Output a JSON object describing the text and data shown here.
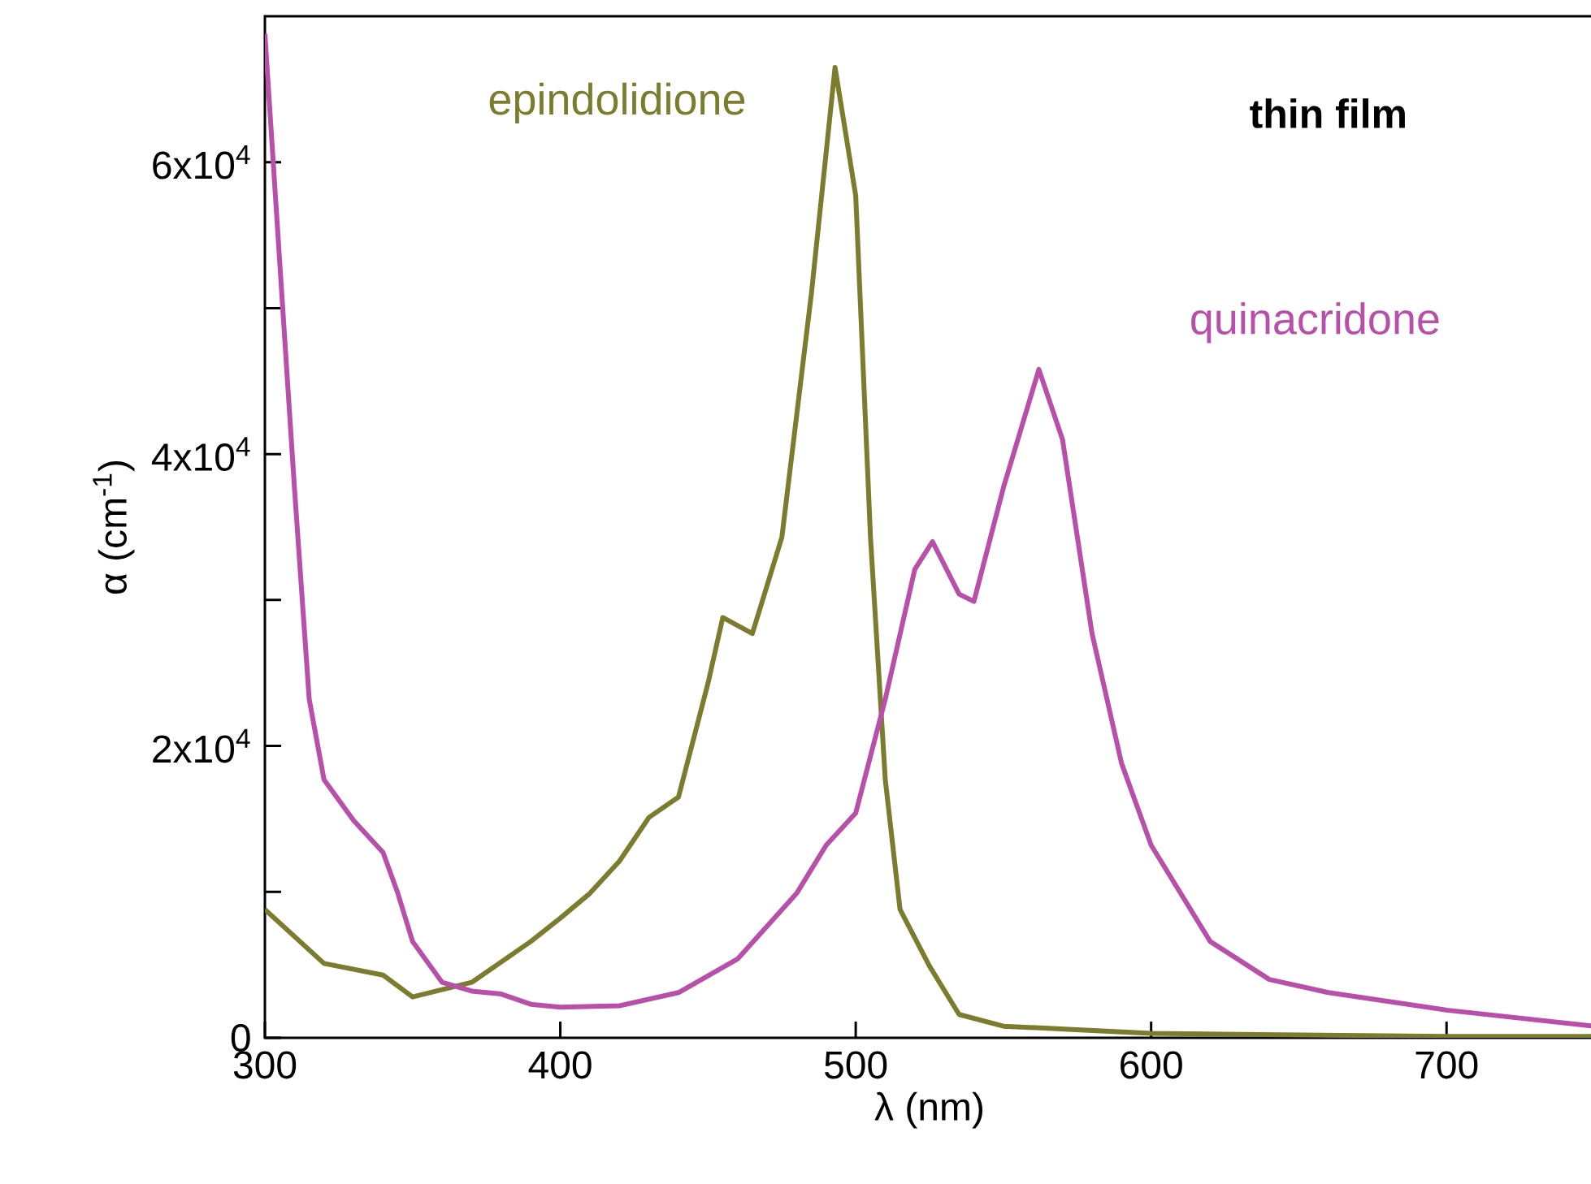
{
  "chart_data": {
    "type": "line",
    "xlabel": "λ (nm)",
    "ylabel": "α (cm$^{-1}$)",
    "annotations": [
      "thin film"
    ],
    "xlim": [
      300,
      750
    ],
    "xticks": [
      300,
      400,
      500,
      600,
      700
    ],
    "ylim": [
      0,
      70000
    ],
    "yticks": [
      {
        "value": 0,
        "label": "0"
      },
      {
        "value": 10000,
        "label": null
      },
      {
        "value": 20000,
        "label": "2x10$^{4}$"
      },
      {
        "value": 30000,
        "label": null
      },
      {
        "value": 40000,
        "label": "4x10$^{4}$"
      },
      {
        "value": 50000,
        "label": null
      },
      {
        "value": 60000,
        "label": "6x10$^{4}$"
      }
    ],
    "line_style": "solid",
    "grid": false,
    "series": [
      {
        "name": "epindolidione",
        "color": "#7b7c2e",
        "x": [
          300,
          320,
          340,
          350,
          370,
          390,
          400,
          410,
          420,
          430,
          440,
          450,
          455,
          465,
          475,
          485,
          493,
          500,
          505,
          510,
          515,
          525,
          535,
          550,
          600,
          700,
          750
        ],
        "values": [
          8800,
          5100,
          4300,
          2800,
          3800,
          6600,
          8200,
          9900,
          12100,
          15100,
          16500,
          24300,
          28800,
          27700,
          34300,
          51000,
          66500,
          57700,
          34300,
          17700,
          8800,
          4900,
          1600,
          800,
          300,
          100,
          100
        ]
      },
      {
        "name": "quinacridone",
        "color": "#b84fa8",
        "x": [
          300,
          305,
          310,
          315,
          320,
          330,
          340,
          345,
          350,
          360,
          370,
          380,
          390,
          400,
          420,
          440,
          460,
          480,
          490,
          500,
          510,
          520,
          526,
          535,
          540,
          550,
          562,
          570,
          580,
          590,
          600,
          620,
          640,
          660,
          700,
          750
        ],
        "values": [
          68800,
          53200,
          37700,
          23200,
          17700,
          14900,
          12700,
          9900,
          6600,
          3800,
          3200,
          3000,
          2300,
          2100,
          2200,
          3100,
          5400,
          9900,
          13200,
          15400,
          23200,
          32100,
          34000,
          30400,
          29900,
          37700,
          45800,
          41000,
          27700,
          18800,
          13200,
          6600,
          4000,
          3100,
          1900,
          800
        ]
      }
    ]
  }
}
